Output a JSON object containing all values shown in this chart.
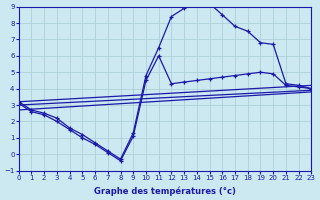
{
  "xlabel": "Graphe des températures (°c)",
  "xlim": [
    0,
    23
  ],
  "ylim": [
    -1,
    9
  ],
  "yticks": [
    -1,
    0,
    1,
    2,
    3,
    4,
    5,
    6,
    7,
    8,
    9
  ],
  "xticks": [
    0,
    1,
    2,
    3,
    4,
    5,
    6,
    7,
    8,
    9,
    10,
    11,
    12,
    13,
    14,
    15,
    16,
    17,
    18,
    19,
    20,
    21,
    22,
    23
  ],
  "background_color": "#cce8f0",
  "grid_color": "#aaccd4",
  "line_color": "#1a1aaa",
  "curve_main_x": [
    0,
    1,
    2,
    3,
    4,
    5,
    6,
    7,
    8,
    9,
    10,
    11,
    12,
    13,
    14,
    15,
    16,
    17,
    18,
    19,
    20,
    21,
    22,
    23
  ],
  "curve_main_y": [
    3.2,
    2.7,
    2.5,
    2.2,
    1.6,
    1.2,
    0.7,
    0.2,
    -0.3,
    1.3,
    4.8,
    6.5,
    8.4,
    8.9,
    9.3,
    9.2,
    8.5,
    7.8,
    7.5,
    6.8,
    6.7,
    4.3,
    4.2,
    4.0
  ],
  "curve_b_x": [
    0,
    1,
    2,
    3,
    4,
    5,
    6,
    7,
    8,
    9,
    10,
    11,
    12,
    13,
    14,
    15,
    16,
    17,
    18,
    19,
    20,
    21,
    22,
    23
  ],
  "curve_b_y": [
    3.1,
    2.6,
    2.4,
    2.0,
    1.5,
    1.0,
    0.6,
    0.1,
    -0.4,
    1.1,
    4.5,
    6.0,
    4.3,
    4.4,
    4.5,
    4.6,
    4.7,
    4.8,
    4.9,
    5.0,
    4.9,
    4.2,
    4.1,
    4.0
  ],
  "line1_x": [
    0,
    23
  ],
  "line1_y": [
    3.2,
    4.2
  ],
  "line2_x": [
    0,
    23
  ],
  "line2_y": [
    3.0,
    3.9
  ],
  "line3_x": [
    0,
    23
  ],
  "line3_y": [
    2.7,
    3.8
  ]
}
